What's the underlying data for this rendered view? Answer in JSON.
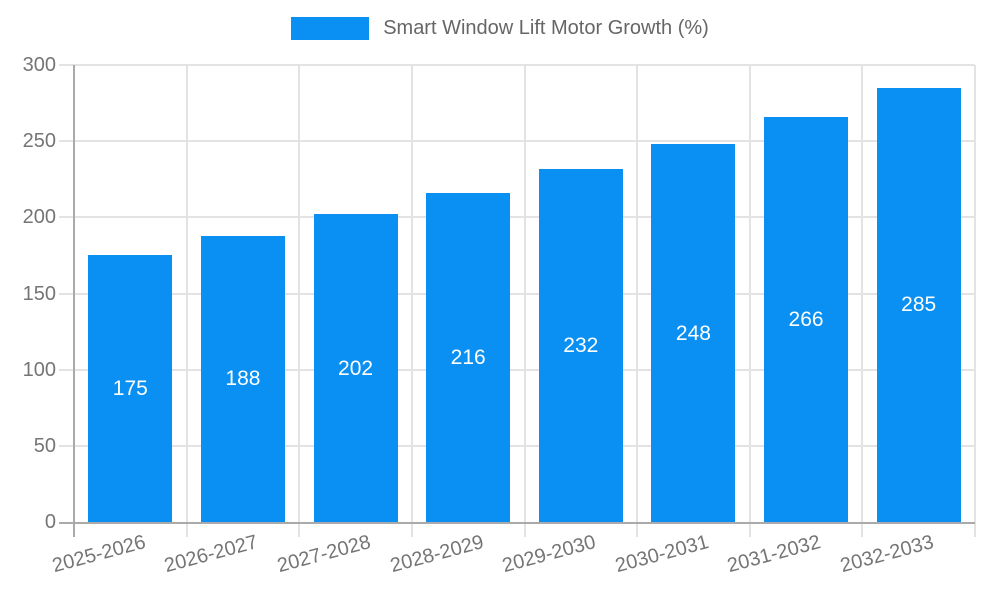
{
  "chart_data": {
    "type": "bar",
    "title": "",
    "legend_label": "Smart Window Lift Motor Growth (%)",
    "legend_position": "top-center",
    "categories": [
      "2025-2026",
      "2026-2027",
      "2027-2028",
      "2028-2029",
      "2029-2030",
      "2030-2031",
      "2031-2032",
      "2032-2033"
    ],
    "values": [
      175,
      188,
      202,
      216,
      232,
      248,
      266,
      285
    ],
    "bar_value_labels": [
      "175",
      "188",
      "202",
      "216",
      "232",
      "248",
      "266",
      "285"
    ],
    "bar_value_label_position": "inside-center",
    "xlabel": "",
    "ylabel": "",
    "ylim": [
      0,
      300
    ],
    "yticks": [
      0,
      50,
      100,
      150,
      200,
      250,
      300
    ],
    "ytick_labels": [
      "0",
      "50",
      "100",
      "150",
      "200",
      "250",
      "300"
    ],
    "grid": true,
    "x_label_rotation_deg": -15,
    "colors": {
      "bar": "#0a90f2",
      "bar_label": "#ffffff",
      "gridline": "#e3e3e3",
      "axis_line": "#aaaaaa",
      "tick_label": "#757575",
      "legend_text": "#666666",
      "background": "#ffffff"
    }
  }
}
